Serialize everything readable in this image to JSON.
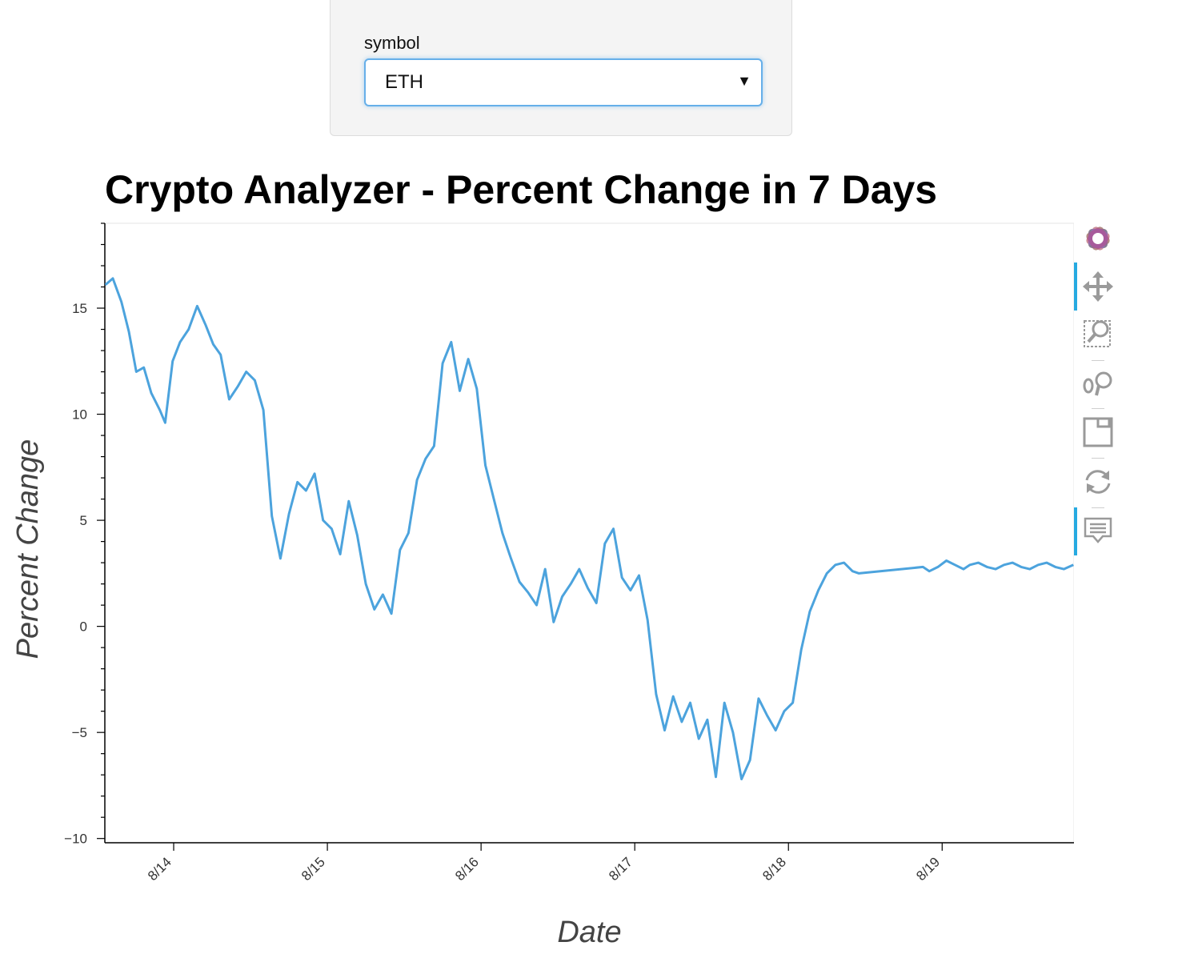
{
  "widget": {
    "label": "symbol",
    "selected": "ETH"
  },
  "chart_title": "Crypto Analyzer - Percent Change in 7 Days",
  "toolbar": {
    "tools": [
      "bokeh-logo-icon",
      "pan-icon",
      "box-zoom-icon",
      "wheel-zoom-icon",
      "save-icon",
      "reset-icon",
      "hover-icon"
    ],
    "active": [
      "pan-icon",
      "hover-icon"
    ]
  },
  "colors": {
    "line": "#4ca3dd",
    "accent": "#26aae1",
    "toolbar_icon": "#9a9a9a"
  },
  "chart_data": {
    "type": "line",
    "title": "Crypto Analyzer - Percent Change in 7 Days",
    "xlabel": "Date",
    "ylabel": "Percent Change",
    "x_tick_labels": [
      "8/14",
      "8/15",
      "8/16",
      "8/17",
      "8/18",
      "8/19"
    ],
    "y_ticks": [
      -10,
      -5,
      0,
      5,
      10,
      15
    ],
    "xlim": [
      "2018-08-13 13:15",
      "2018-08-19 20:35"
    ],
    "ylim": [
      -10.2,
      19
    ],
    "grid": false,
    "series": [
      {
        "name": "",
        "x": [
          "2018-08-13 13:20",
          "2018-08-13 14:30",
          "2018-08-13 15:50",
          "2018-08-13 17:00",
          "2018-08-13 18:10",
          "2018-08-13 19:20",
          "2018-08-13 20:30",
          "2018-08-13 21:50",
          "2018-08-13 22:40",
          "2018-08-13 23:50",
          "2018-08-14 01:00",
          "2018-08-14 02:20",
          "2018-08-14 03:40",
          "2018-08-14 05:00",
          "2018-08-14 06:10",
          "2018-08-14 07:20",
          "2018-08-14 08:40",
          "2018-08-14 10:00",
          "2018-08-14 11:20",
          "2018-08-14 12:40",
          "2018-08-14 14:00",
          "2018-08-14 15:20",
          "2018-08-14 16:40",
          "2018-08-14 18:00",
          "2018-08-14 19:20",
          "2018-08-14 20:40",
          "2018-08-14 22:00",
          "2018-08-14 23:20",
          "2018-08-15 00:40",
          "2018-08-15 02:00",
          "2018-08-15 03:20",
          "2018-08-15 04:40",
          "2018-08-15 06:00",
          "2018-08-15 07:20",
          "2018-08-15 08:40",
          "2018-08-15 10:00",
          "2018-08-15 11:20",
          "2018-08-15 12:40",
          "2018-08-15 14:00",
          "2018-08-15 15:20",
          "2018-08-15 16:40",
          "2018-08-15 18:00",
          "2018-08-15 19:20",
          "2018-08-15 20:40",
          "2018-08-15 22:00",
          "2018-08-15 23:20",
          "2018-08-16 00:40",
          "2018-08-16 02:00",
          "2018-08-16 03:20",
          "2018-08-16 04:40",
          "2018-08-16 06:00",
          "2018-08-16 07:20",
          "2018-08-16 08:40",
          "2018-08-16 10:00",
          "2018-08-16 11:20",
          "2018-08-16 12:40",
          "2018-08-16 14:00",
          "2018-08-16 15:20",
          "2018-08-16 16:40",
          "2018-08-16 18:00",
          "2018-08-16 19:20",
          "2018-08-16 20:40",
          "2018-08-16 22:00",
          "2018-08-16 23:20",
          "2018-08-17 00:40",
          "2018-08-17 02:00",
          "2018-08-17 03:20",
          "2018-08-17 04:40",
          "2018-08-17 06:00",
          "2018-08-17 07:20",
          "2018-08-17 08:40",
          "2018-08-17 10:00",
          "2018-08-17 11:20",
          "2018-08-17 12:40",
          "2018-08-17 14:00",
          "2018-08-17 15:20",
          "2018-08-17 16:40",
          "2018-08-17 18:00",
          "2018-08-17 19:20",
          "2018-08-17 20:40",
          "2018-08-17 22:00",
          "2018-08-17 23:20",
          "2018-08-18 00:40",
          "2018-08-18 02:00",
          "2018-08-18 03:20",
          "2018-08-18 04:40",
          "2018-08-18 06:00",
          "2018-08-18 07:20",
          "2018-08-18 08:40",
          "2018-08-18 10:00",
          "2018-08-18 11:00",
          "2018-08-18 21:00",
          "2018-08-18 22:00",
          "2018-08-18 23:20",
          "2018-08-19 00:40",
          "2018-08-19 02:00",
          "2018-08-19 03:20",
          "2018-08-19 04:20",
          "2018-08-19 05:40",
          "2018-08-19 07:00",
          "2018-08-19 08:20",
          "2018-08-19 09:40",
          "2018-08-19 11:00",
          "2018-08-19 12:20",
          "2018-08-19 13:40",
          "2018-08-19 15:00",
          "2018-08-19 16:20",
          "2018-08-19 17:40",
          "2018-08-19 19:00",
          "2018-08-19 20:30"
        ],
        "y": [
          16.1,
          16.4,
          15.3,
          13.9,
          12.0,
          12.2,
          11.0,
          10.2,
          9.6,
          12.5,
          13.4,
          14.0,
          15.1,
          14.2,
          13.3,
          12.8,
          10.7,
          11.3,
          12.0,
          11.6,
          10.2,
          5.2,
          3.2,
          5.3,
          6.8,
          6.4,
          7.2,
          5.0,
          4.6,
          3.4,
          5.9,
          4.3,
          2.0,
          0.8,
          1.5,
          0.6,
          3.6,
          4.4,
          6.9,
          7.9,
          8.5,
          12.4,
          13.4,
          11.1,
          12.6,
          11.2,
          7.6,
          6.0,
          4.4,
          3.2,
          2.1,
          1.6,
          1.0,
          2.7,
          0.2,
          1.4,
          2.0,
          2.7,
          1.8,
          1.1,
          3.9,
          4.6,
          2.3,
          1.7,
          2.4,
          0.3,
          -3.2,
          -4.9,
          -3.3,
          -4.5,
          -3.6,
          -5.3,
          -4.4,
          -7.1,
          -3.6,
          -5.0,
          -7.2,
          -6.3,
          -3.4,
          -4.2,
          -4.9,
          -4.0,
          -3.6,
          -1.1,
          0.7,
          1.7,
          2.5,
          2.9,
          3.0,
          2.6,
          2.5,
          2.8,
          2.6,
          2.8,
          3.1,
          2.9,
          2.7,
          2.9,
          3.0,
          2.8,
          2.7,
          2.9,
          3.0,
          2.8,
          2.7,
          2.9,
          3.0,
          2.8,
          2.7,
          2.9
        ]
      }
    ]
  }
}
